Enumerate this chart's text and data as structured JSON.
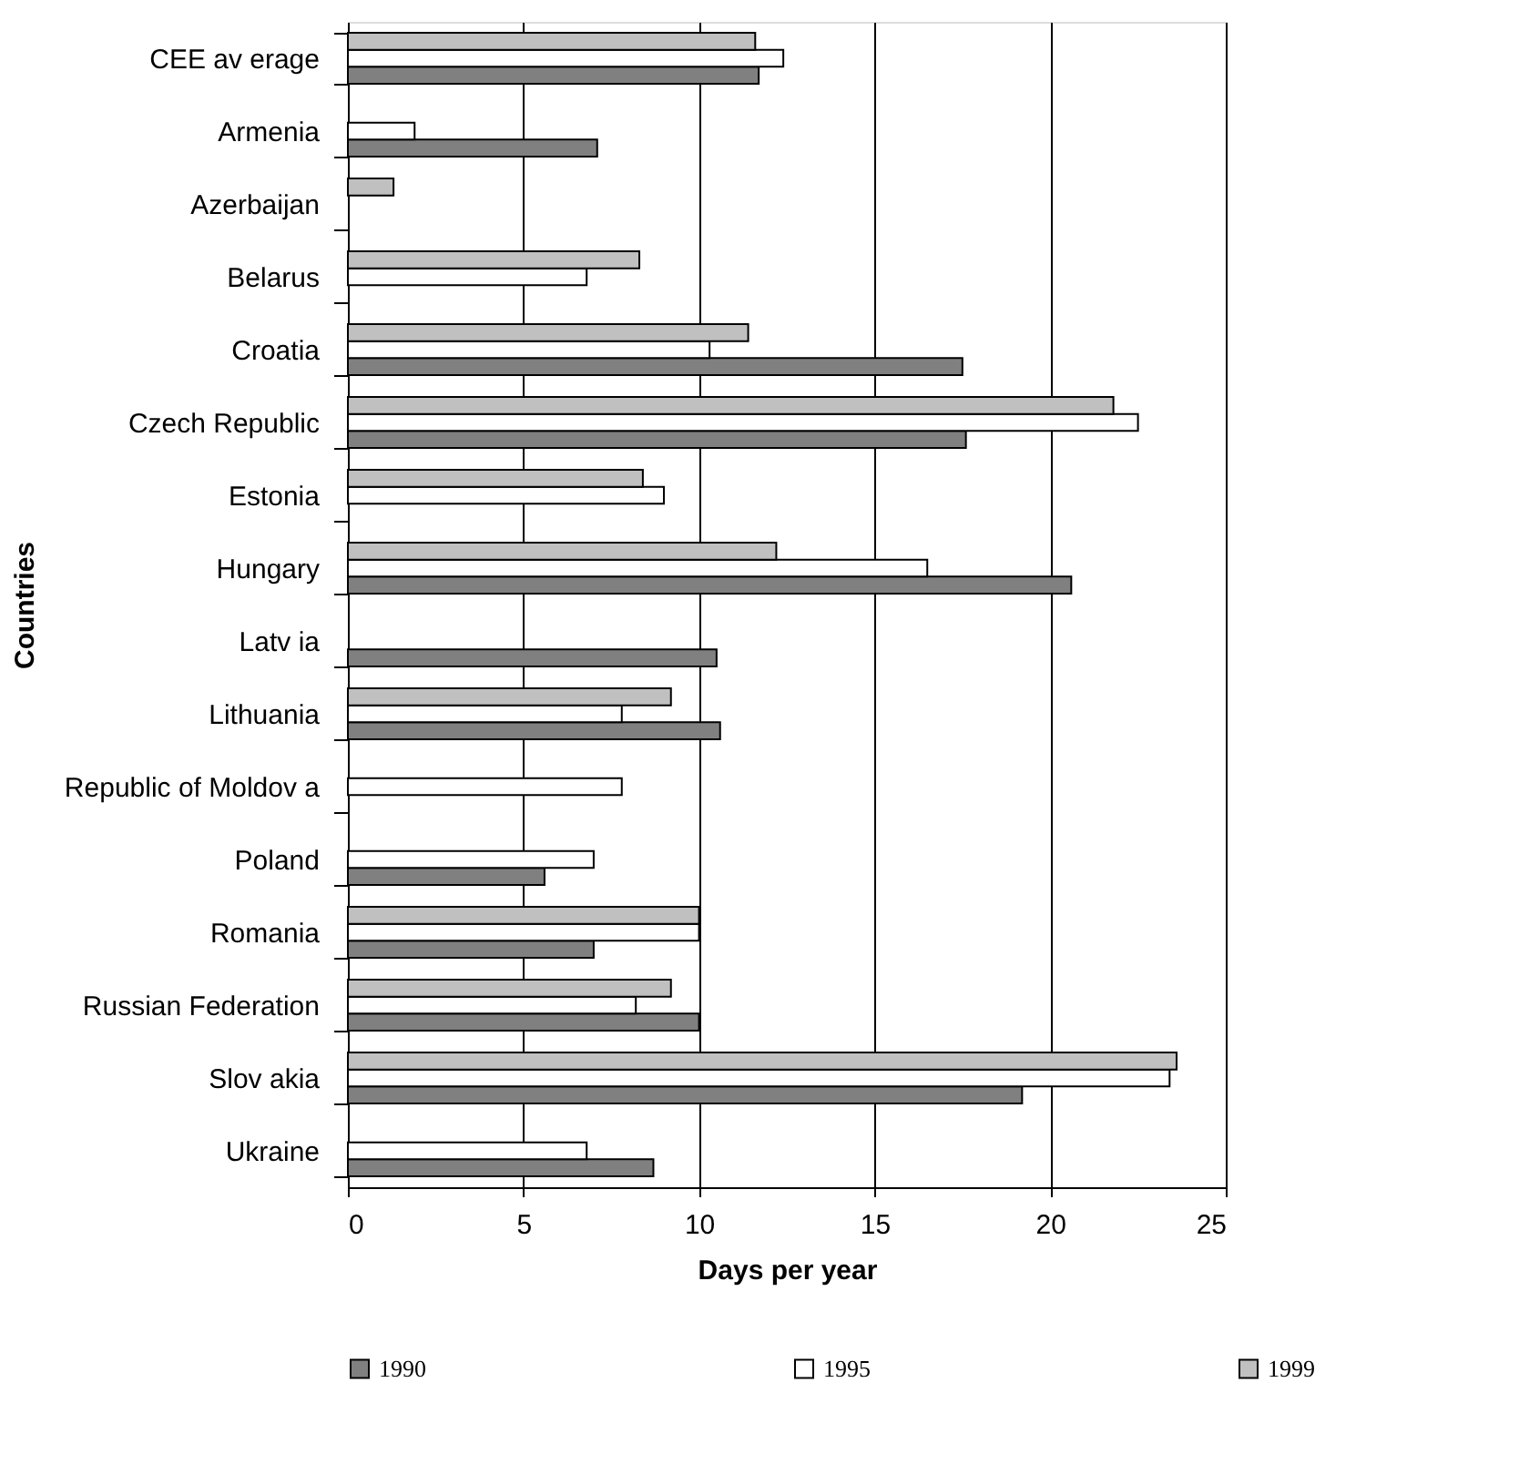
{
  "chart_data": {
    "type": "bar",
    "orientation": "horizontal",
    "xlabel": "Days per year",
    "ylabel": "Countries",
    "categories": [
      "CEE av erage",
      "Armenia",
      "Azerbaijan",
      "Belarus",
      "Croatia",
      "Czech Republic",
      "Estonia",
      "Hungary",
      "Latv ia",
      "Lithuania",
      "Republic of Moldov a",
      "Poland",
      "Romania",
      "Russian Federation",
      "Slov akia",
      "Ukraine"
    ],
    "series": [
      {
        "name": "1990",
        "color": "#808080",
        "values": [
          11.7,
          7.1,
          null,
          null,
          17.5,
          17.6,
          null,
          20.6,
          10.5,
          10.6,
          null,
          5.6,
          7.0,
          10.0,
          19.2,
          8.7
        ]
      },
      {
        "name": "1995",
        "color": "#ffffff",
        "values": [
          12.4,
          1.9,
          null,
          6.8,
          10.3,
          22.5,
          9.0,
          16.5,
          null,
          7.8,
          7.8,
          7.0,
          10.0,
          8.2,
          23.4,
          6.8
        ]
      },
      {
        "name": "1999",
        "color": "#c0c0c0",
        "values": [
          11.6,
          null,
          1.3,
          8.3,
          11.4,
          21.8,
          8.4,
          12.2,
          null,
          9.2,
          null,
          null,
          10.0,
          9.2,
          23.6,
          null
        ]
      }
    ],
    "xlim": [
      0,
      25
    ],
    "xticks": [
      0,
      5,
      10,
      15,
      20,
      25
    ],
    "grid": "x",
    "legend": "bottom"
  }
}
